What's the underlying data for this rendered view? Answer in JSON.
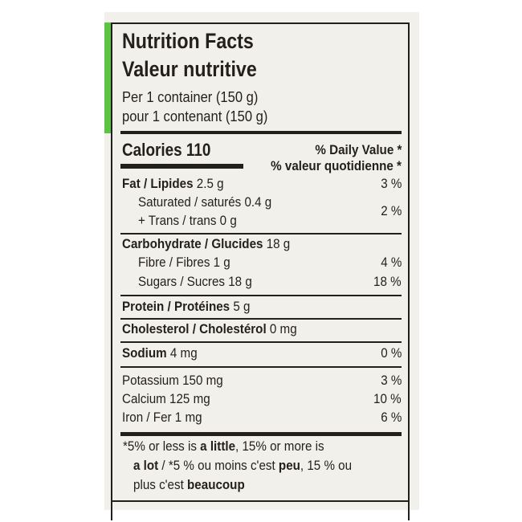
{
  "title_en": "Nutrition Facts",
  "title_fr": "Valeur nutritive",
  "serving_en": "Per 1 container (150 g)",
  "serving_fr": "pour 1 contenant (150 g)",
  "calories_label": "Calories 110",
  "dv_en": "% Daily Value *",
  "dv_fr": "% valeur quotidienne *",
  "rows": [
    {
      "label": "Fat / Lipides",
      "amount": "2.5 g",
      "dv": "3 %"
    },
    {
      "label": "Saturated / saturés 0.4 g"
    },
    {
      "label": "+ Trans / trans 0 g",
      "dv": "2 %"
    },
    {
      "label": "Carbohydrate / Glucides",
      "amount": "18 g"
    },
    {
      "label": "Fibre / Fibres 1 g",
      "dv": "4 %"
    },
    {
      "label": "Sugars / Sucres 18 g",
      "dv": "18 %"
    },
    {
      "label": "Protein / Protéines",
      "amount": "5 g"
    },
    {
      "label": "Cholesterol / Cholestérol",
      "amount": "0 mg"
    },
    {
      "label": "Sodium",
      "amount": "4 mg",
      "dv": "0 %"
    },
    {
      "label": "Potassium 150 mg",
      "dv": "3 %"
    },
    {
      "label": "Calcium 125 mg",
      "dv": "10 %"
    },
    {
      "label": "Iron / Fer 1 mg",
      "dv": "6 %"
    }
  ],
  "footnote": {
    "p1": "*5% or less is ",
    "b1": "a little",
    "p2": ", 15% or more is",
    "b2": "a lot",
    "p3": " / *5 % ou moins c'est ",
    "b3": "peu",
    "p4": ", 15 % ou",
    "p5": "plus c'est ",
    "b4": "beaucoup"
  },
  "colors": {
    "accent": "#5cc445",
    "ink": "#231f1c",
    "background": "#f2f0ea"
  }
}
